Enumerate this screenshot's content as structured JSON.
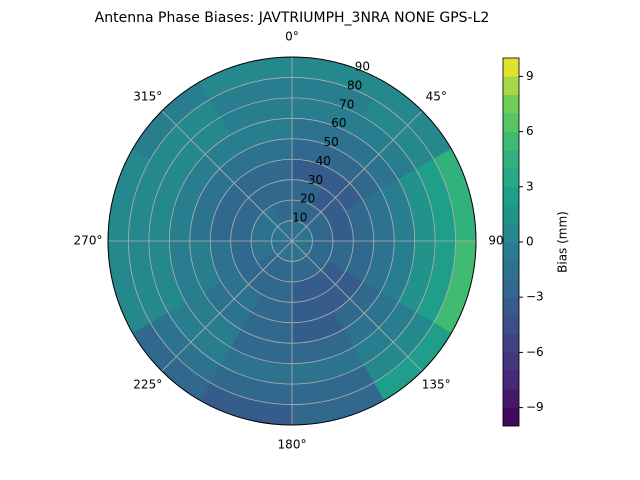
{
  "chart_data": {
    "type": "polar-contour",
    "title": "Antenna Phase Biases: JAVTRIUMPH_3NRA NONE GPS-L2",
    "colorbar_label": "Bias (mm)",
    "colormap": "viridis",
    "azimuth_bins": [
      0,
      30,
      60,
      90,
      120,
      150,
      180,
      210,
      240,
      270,
      300,
      330,
      360
    ],
    "zenith_bins": [
      0,
      10,
      20,
      30,
      40,
      50,
      60,
      70,
      80,
      90
    ],
    "values": [
      [
        -2,
        -3,
        -3,
        -4,
        -3,
        -2,
        -1,
        -1,
        0
      ],
      [
        -2,
        -3,
        -4,
        -4,
        -3,
        -2,
        -1,
        0,
        0
      ],
      [
        -2,
        -3,
        -4,
        -3,
        -2,
        -1,
        1,
        2,
        4
      ],
      [
        -2,
        -3,
        -3,
        -3,
        -2,
        -1,
        1,
        2,
        5
      ],
      [
        -2,
        -3,
        -4,
        -4,
        -3,
        -2,
        -1,
        0,
        2
      ],
      [
        -2,
        -3,
        -4,
        -4,
        -4,
        -3,
        -2,
        -3,
        -3
      ],
      [
        -2,
        -3,
        -3,
        -3,
        -3,
        -3,
        -2,
        -3,
        -4
      ],
      [
        -2,
        -3,
        -3,
        -2,
        -2,
        -1,
        -1,
        -2,
        -3
      ],
      [
        -2,
        -2,
        -3,
        -2,
        -1,
        -1,
        0,
        0,
        0
      ],
      [
        -2,
        -2,
        -3,
        -3,
        -2,
        -1,
        0,
        0,
        0
      ],
      [
        -2,
        -2,
        -3,
        -3,
        -2,
        -1,
        0,
        0,
        -1
      ],
      [
        -2,
        -3,
        -3,
        -3,
        -2,
        -1,
        -1,
        -1,
        0
      ]
    ],
    "rlim": [
      0,
      90
    ],
    "rticks": [
      10,
      20,
      30,
      40,
      50,
      60,
      70,
      80,
      90
    ],
    "thetaticks": [
      {
        "value": 0,
        "label": "0°"
      },
      {
        "value": 45,
        "label": "45°"
      },
      90,
      {
        "value": 135,
        "label": "135°"
      },
      {
        "value": 180,
        "label": "180°"
      },
      {
        "value": 225,
        "label": "225°"
      },
      {
        "value": 270,
        "label": "270°"
      },
      {
        "value": 315,
        "label": "315°"
      }
    ],
    "levels": [
      -10,
      -9,
      -8,
      -7,
      -6,
      -5,
      -4,
      -3,
      -2,
      -1,
      0,
      1,
      2,
      3,
      4,
      5,
      6,
      7,
      8,
      9,
      10
    ],
    "clim": [
      -10,
      10
    ],
    "cticks": [
      {
        "value": -9,
        "label": "−9"
      },
      {
        "value": -6,
        "label": "−6"
      },
      {
        "value": -3,
        "label": "−3"
      },
      0,
      3,
      6,
      9
    ],
    "grid": true
  }
}
